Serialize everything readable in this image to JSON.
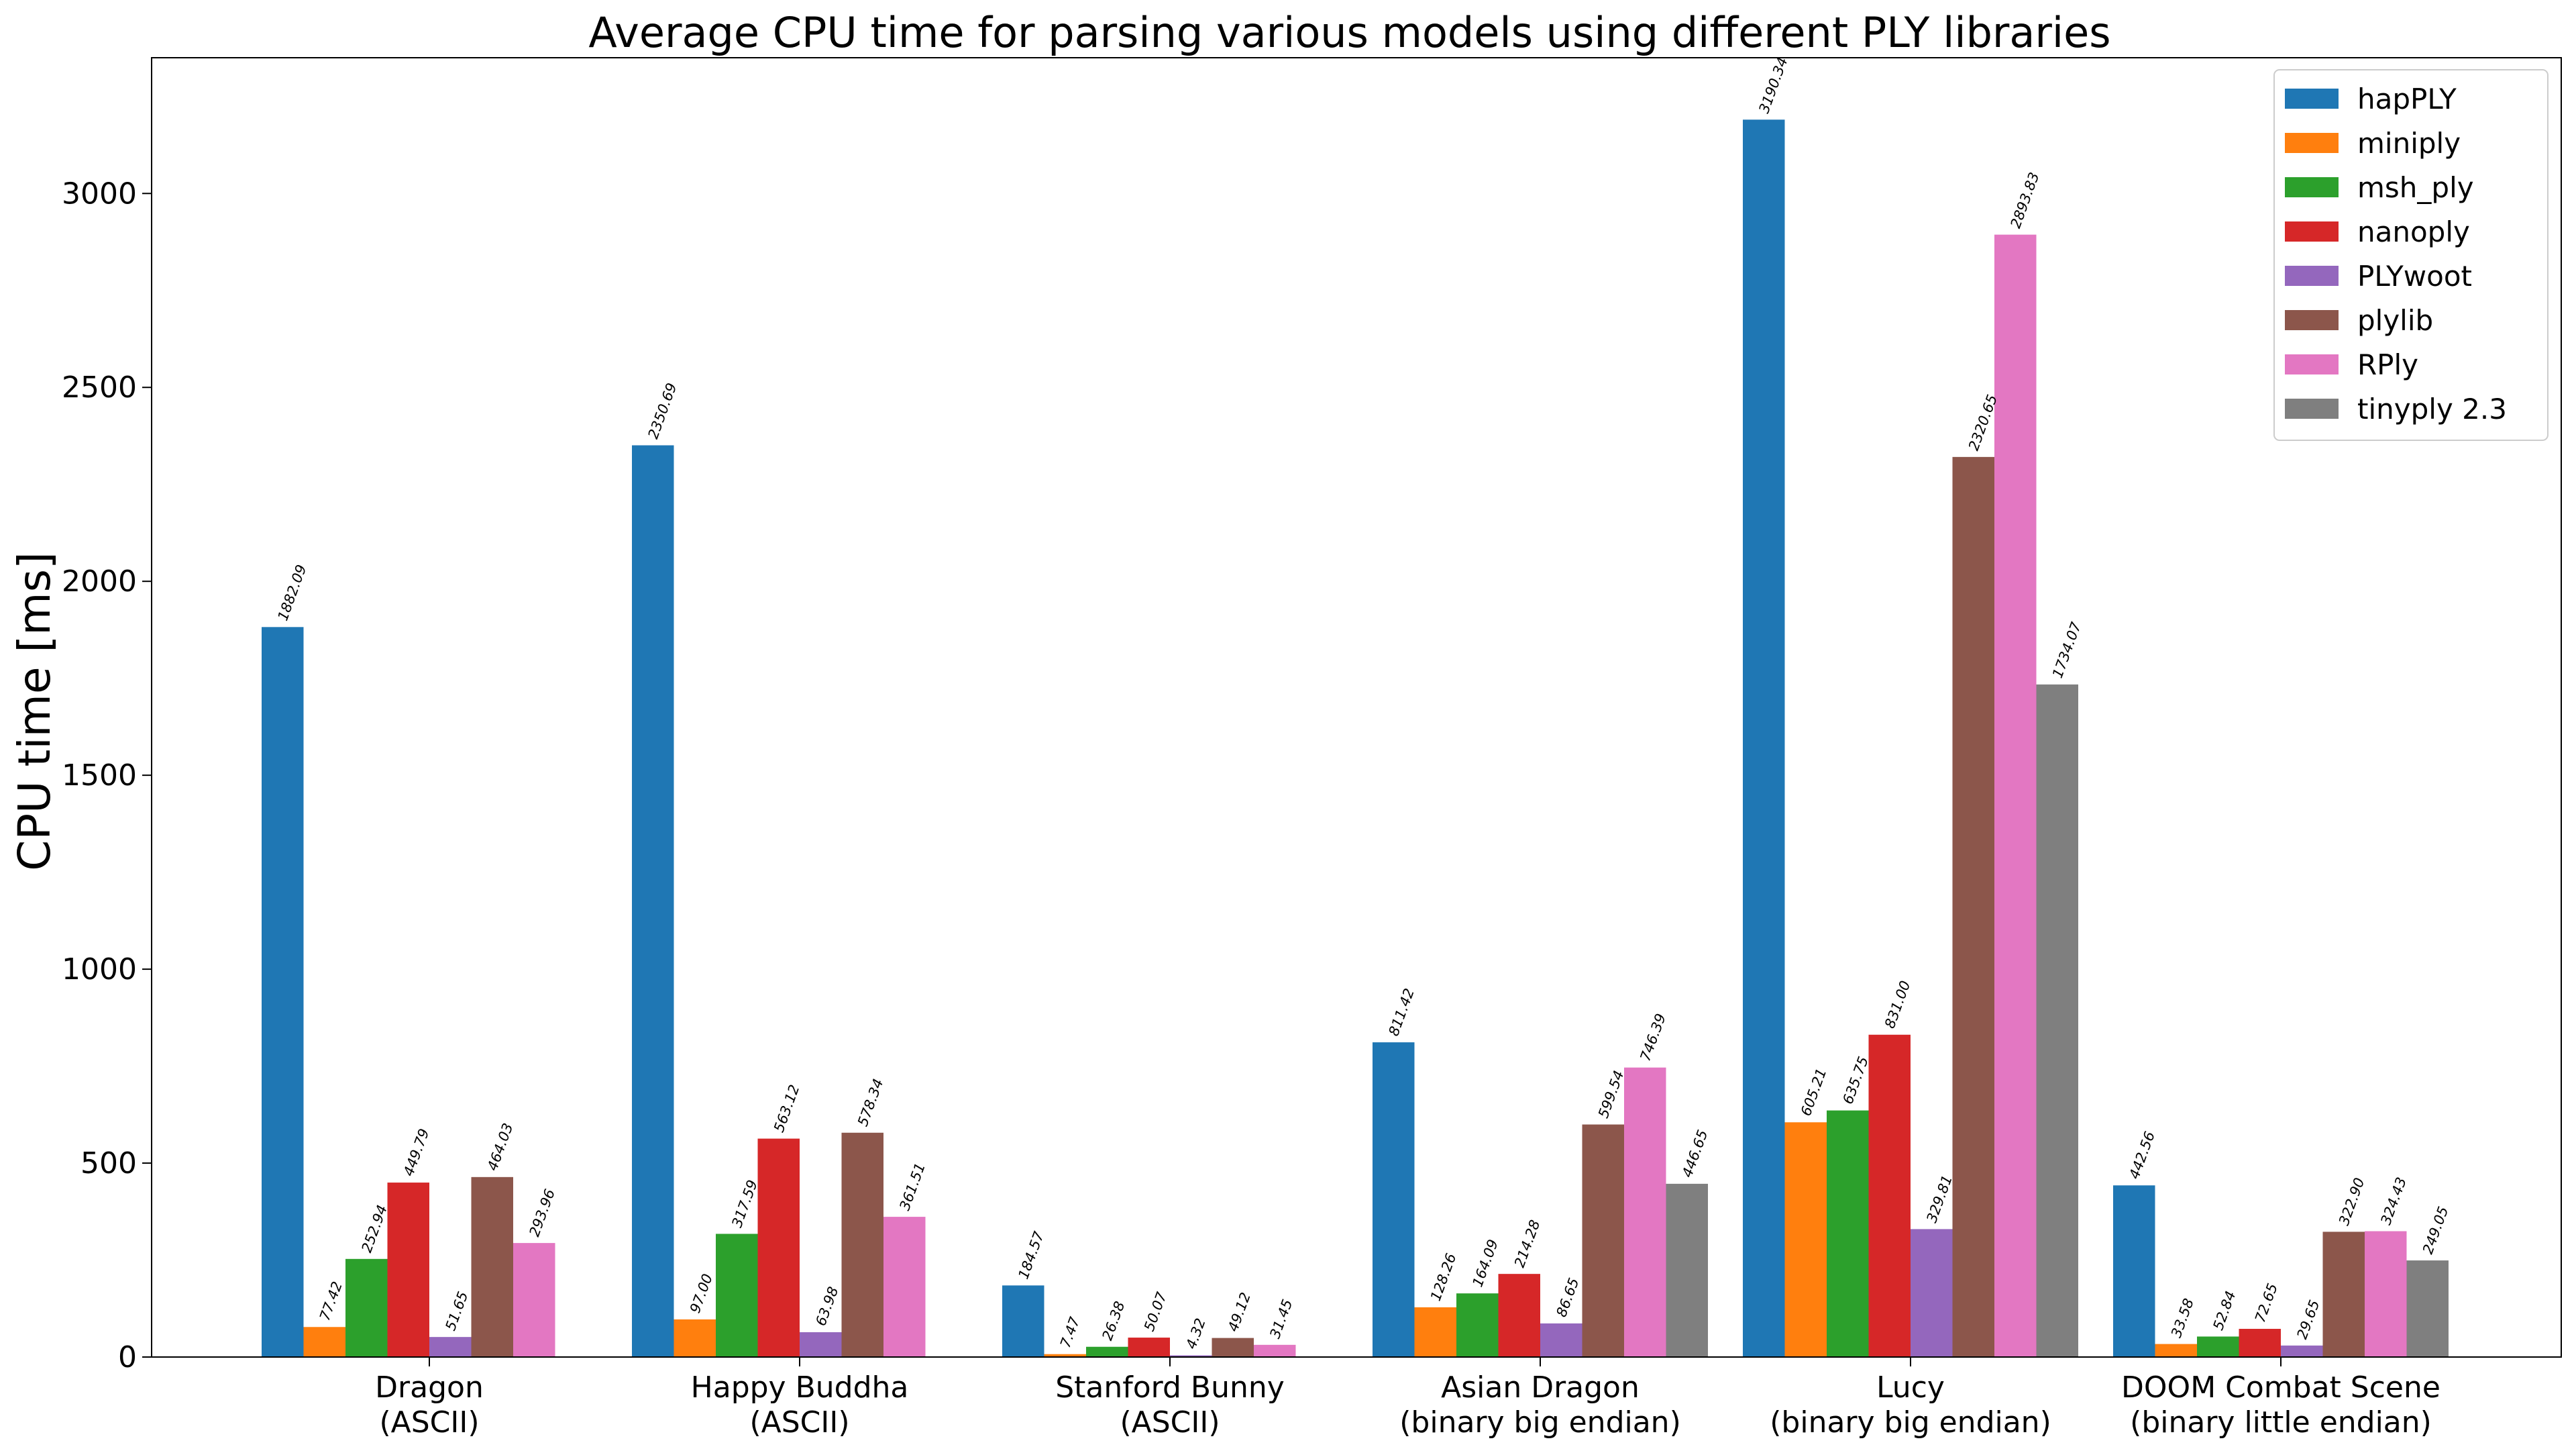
{
  "chart_data": {
    "type": "bar",
    "title": "Average CPU time for parsing various models using different PLY libraries",
    "xlabel": "",
    "ylabel": "CPU time [ms]",
    "ylim": [
      0,
      3350
    ],
    "yticks": [
      0,
      500,
      1000,
      1500,
      2000,
      2500,
      3000
    ],
    "grid": false,
    "legend_position": "top-right",
    "categories": [
      [
        "Dragon",
        "(ASCII)"
      ],
      [
        "Happy Buddha",
        "(ASCII)"
      ],
      [
        "Stanford Bunny",
        "(ASCII)"
      ],
      [
        "Asian Dragon",
        "(binary big endian)"
      ],
      [
        "Lucy",
        "(binary big endian)"
      ],
      [
        "DOOM Combat Scene",
        "(binary little endian)"
      ]
    ],
    "series": [
      {
        "name": "hapPLY",
        "color": "#1f77b4",
        "values": [
          1882.09,
          2350.69,
          184.57,
          811.42,
          3190.34,
          442.56
        ]
      },
      {
        "name": "miniply",
        "color": "#ff7f0e",
        "values": [
          77.42,
          97.0,
          7.47,
          128.26,
          605.21,
          33.58
        ]
      },
      {
        "name": "msh_ply",
        "color": "#2ca02c",
        "values": [
          252.94,
          317.59,
          26.38,
          164.09,
          635.75,
          52.84
        ]
      },
      {
        "name": "nanoply",
        "color": "#d62728",
        "values": [
          449.79,
          563.12,
          50.07,
          214.28,
          831.0,
          72.65
        ]
      },
      {
        "name": "PLYwoot",
        "color": "#9467bd",
        "values": [
          51.65,
          63.98,
          4.32,
          86.65,
          329.81,
          29.65
        ]
      },
      {
        "name": "plylib",
        "color": "#8c564b",
        "values": [
          464.03,
          578.34,
          49.12,
          599.54,
          2320.65,
          322.9
        ]
      },
      {
        "name": "RPly",
        "color": "#e377c2",
        "values": [
          293.96,
          361.51,
          31.45,
          746.39,
          2893.83,
          324.43
        ]
      },
      {
        "name": "tinyply 2.3",
        "color": "#7f7f7f",
        "values": [
          null,
          null,
          null,
          446.65,
          1734.07,
          249.05
        ]
      }
    ]
  }
}
